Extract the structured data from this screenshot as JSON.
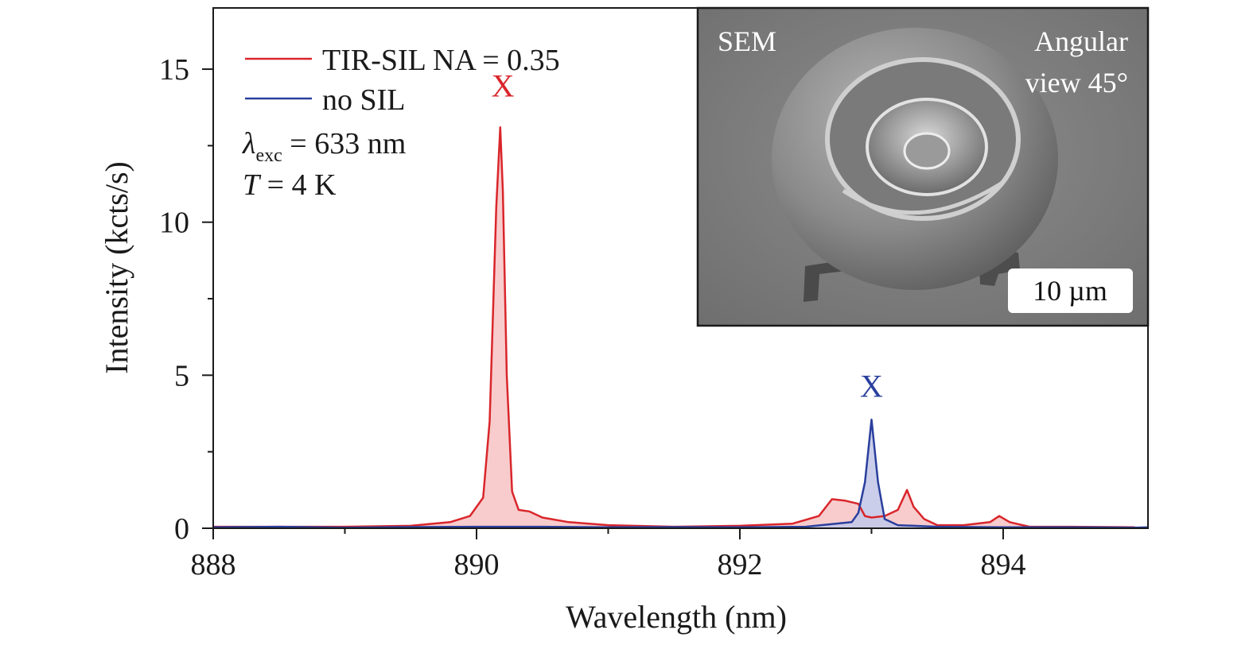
{
  "chart_data": {
    "type": "line",
    "xlabel": "Wavelength (nm)",
    "ylabel": "Intensity (kcts/s)",
    "xlim": [
      888,
      895.1
    ],
    "ylim": [
      0,
      17
    ],
    "x_ticks": [
      888,
      890,
      892,
      894
    ],
    "x_tick_labels": [
      "888",
      "890",
      "892",
      "894"
    ],
    "y_ticks": [
      0,
      5,
      10,
      15
    ],
    "y_tick_labels": [
      "0",
      "5",
      "10",
      "15"
    ],
    "y_minor_ticks": [
      2.5,
      7.5,
      12.5
    ],
    "x_minor_ticks": [
      889,
      891,
      893
    ],
    "legend_position": "top-left",
    "series": [
      {
        "name": "TIR-SIL NA = 0.35",
        "color": "#d9262b",
        "fill": "#f7c6c8",
        "x": [
          888.0,
          888.5,
          889.0,
          889.5,
          889.8,
          889.95,
          890.05,
          890.1,
          890.15,
          890.18,
          890.2,
          890.23,
          890.27,
          890.32,
          890.4,
          890.5,
          890.7,
          891.0,
          891.5,
          892.0,
          892.4,
          892.6,
          892.7,
          892.8,
          892.9,
          892.95,
          893.0,
          893.1,
          893.2,
          893.27,
          893.32,
          893.4,
          893.5,
          893.7,
          893.9,
          893.97,
          894.05,
          894.2,
          894.5,
          895.0
        ],
        "y": [
          0.05,
          0.05,
          0.05,
          0.08,
          0.2,
          0.4,
          1.0,
          3.5,
          10.5,
          13.1,
          11.0,
          5.0,
          1.2,
          0.6,
          0.55,
          0.35,
          0.2,
          0.1,
          0.05,
          0.08,
          0.15,
          0.4,
          0.95,
          0.9,
          0.8,
          0.4,
          0.35,
          0.4,
          0.6,
          1.25,
          0.7,
          0.3,
          0.1,
          0.1,
          0.2,
          0.4,
          0.2,
          0.05,
          0.05,
          0.03
        ]
      },
      {
        "name": "no SIL",
        "color": "#2a3f9d",
        "fill": "#c4c9e8",
        "x": [
          888.0,
          888.5,
          889.0,
          889.5,
          890.0,
          890.5,
          891.0,
          891.5,
          892.0,
          892.5,
          892.85,
          892.9,
          892.95,
          893.0,
          893.05,
          893.1,
          893.2,
          893.5,
          894.0,
          894.5,
          895.0,
          895.1
        ],
        "y": [
          0.03,
          0.05,
          0.02,
          0.04,
          0.05,
          0.05,
          0.03,
          0.04,
          0.03,
          0.05,
          0.2,
          0.5,
          1.5,
          3.55,
          1.5,
          0.3,
          0.1,
          0.05,
          0.03,
          0.03,
          0.02,
          0.03
        ]
      }
    ],
    "annotations": [
      {
        "text": "X",
        "x": 890.2,
        "y": 14.1,
        "color": "#d9262b"
      },
      {
        "text": "X",
        "x": 893.0,
        "y": 4.3,
        "color": "#2a3f9d"
      }
    ],
    "text_notes": {
      "lambda_symbol": "λ",
      "lambda_sub": "exc",
      "lambda_value": " = 633 nm",
      "temp_symbol": "T",
      "temp_value": " = 4 K"
    }
  },
  "inset": {
    "title_left": "SEM",
    "title_right_line1": "Angular",
    "title_right_line2": "view 45°",
    "scale_bar": "10 µm"
  }
}
